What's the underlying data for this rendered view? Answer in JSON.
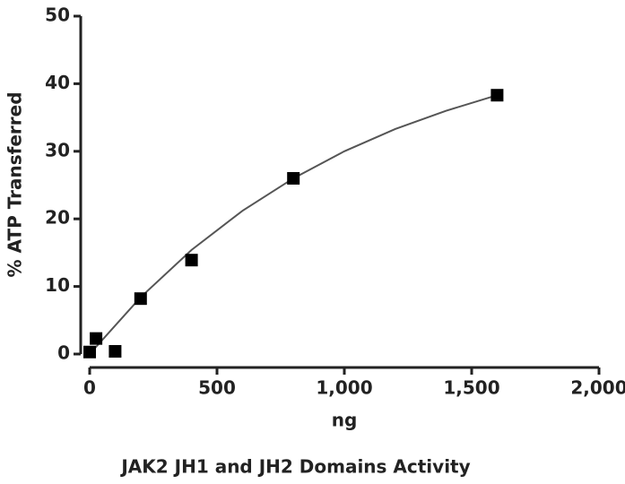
{
  "chart_data": {
    "type": "scatter",
    "caption": "JAK2 JH1 and JH2 Domains Activity",
    "x_label": "ng",
    "y_label": "% ATP Transferred",
    "x": [
      0,
      25,
      100,
      200,
      400,
      800,
      1600
    ],
    "values": [
      0.3,
      2.3,
      0.4,
      8.2,
      13.9,
      26,
      38.3
    ],
    "color": "#000000",
    "curve": {
      "x": [
        0,
        200,
        400,
        600,
        800,
        1000,
        1200,
        1400,
        1600
      ],
      "values": [
        0,
        8.4,
        15.4,
        21.2,
        26,
        30,
        33.3,
        36,
        38.3
      ],
      "color": "#555555"
    },
    "xlim": [
      0,
      2000
    ],
    "xticks": [
      0,
      500,
      {
        "value": 1000,
        "label": "1,000"
      },
      {
        "value": 1500,
        "label": "1,500"
      },
      {
        "value": 2000,
        "label": "2,000"
      }
    ],
    "ylim": [
      0,
      50
    ],
    "yticks": [
      0,
      10,
      20,
      30,
      40,
      50
    ],
    "grid": false
  }
}
